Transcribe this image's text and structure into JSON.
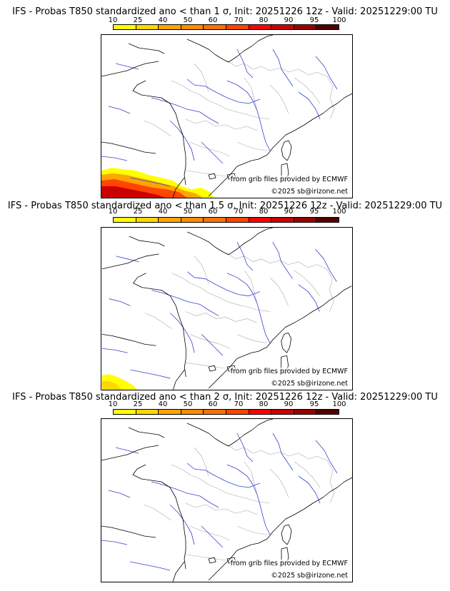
{
  "colorbar": {
    "ticks": [
      "10",
      "25",
      "40",
      "50",
      "60",
      "70",
      "80",
      "90",
      "95",
      "100"
    ],
    "colors": [
      "#ffff00",
      "#ffd700",
      "#ffa500",
      "#ff8c00",
      "#ff7000",
      "#ff4500",
      "#ff0000",
      "#cc0000",
      "#990000",
      "#550000"
    ]
  },
  "styles": {
    "river_color": "#3344cc",
    "border_color": "#aaaaaa",
    "coast_color": "#000000"
  },
  "panels": [
    {
      "title": "IFS - Probas T850  standardized ano < than 1 σ, Init: 20251226 12z - Valid: 20251229:00 TU",
      "source": "from grib files provided by ECMWF",
      "copyright": "©2025 sb@irizone.net",
      "probability_area": "large"
    },
    {
      "title": "IFS - Probas T850  standardized ano < than 1.5 σ, Init: 20251226 12z - Valid: 20251229:00 TU",
      "source": "from grib files provided by ECMWF",
      "copyright": "©2025 sb@irizone.net",
      "probability_area": "small"
    },
    {
      "title": "IFS - Probas T850  standardized ano < than 2 σ, Init: 20251226 12z - Valid: 20251229:00 TU",
      "source": "from grib files provided by ECMWF",
      "copyright": "©2025 sb@irizone.net",
      "probability_area": "none"
    }
  ]
}
